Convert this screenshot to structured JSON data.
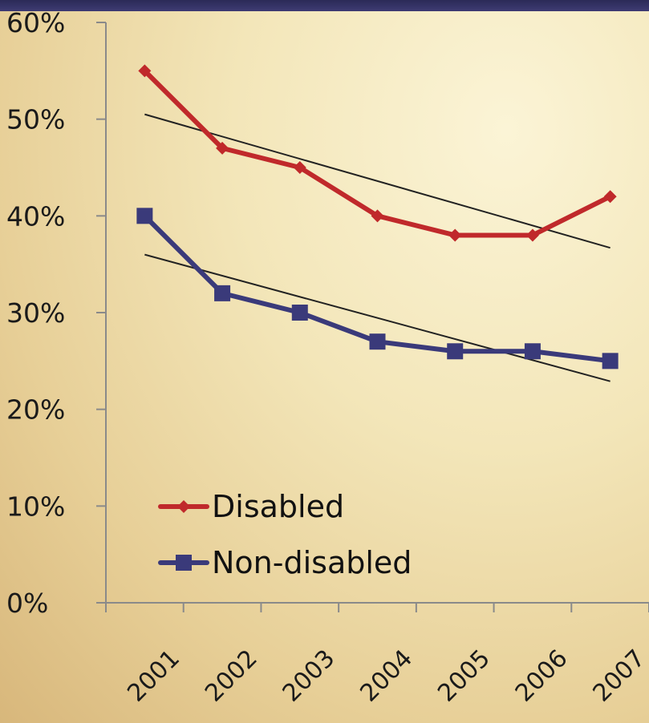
{
  "chart_data": {
    "type": "line",
    "x": [
      "2001",
      "2002",
      "2003",
      "2004",
      "2005",
      "2006",
      "2007"
    ],
    "ylim": [
      0,
      60
    ],
    "y_ticks": [
      0,
      10,
      20,
      30,
      40,
      50,
      60
    ],
    "y_tick_labels": [
      "0%",
      "10%",
      "20%",
      "30%",
      "40%",
      "50%",
      "60%"
    ],
    "grid": false,
    "legend_position": "bottom-left",
    "series": [
      {
        "name": "Disabled",
        "values": [
          55,
          47,
          45,
          40,
          38,
          38,
          42
        ],
        "color": "#c0292b",
        "marker": "diamond",
        "trendline": [
          50.5,
          36.7
        ]
      },
      {
        "name": "Non-disabled",
        "values": [
          40,
          32,
          30,
          27,
          26,
          26,
          25
        ],
        "color": "#3a3a7a",
        "marker": "square",
        "trendline": [
          36.0,
          22.9
        ]
      }
    ],
    "trendline_color": "#222222"
  }
}
